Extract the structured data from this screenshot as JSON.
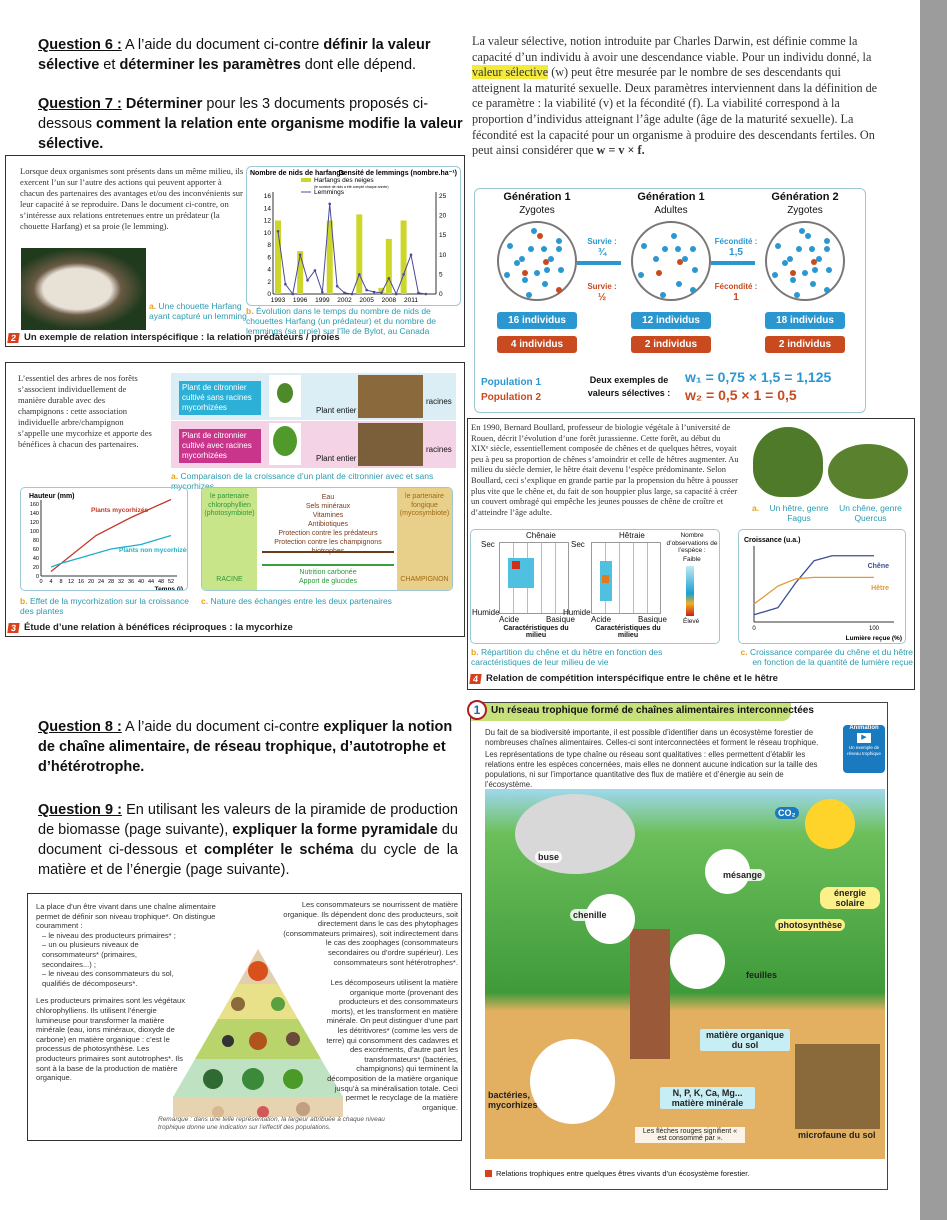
{
  "questions": {
    "q6": {
      "label": "Question 6 :",
      "s1": " A l’aide du document ci-contre ",
      "b1": "définir la valeur sélective",
      "s2": " et ",
      "b2": "déterminer les paramètres",
      "s3": " dont elle dépend."
    },
    "q7": {
      "label": "Question 7 :",
      "s1": " ",
      "b1": "Déterminer",
      "s2": " pour les 3 documents proposés ci-dessous ",
      "b2": "comment la relation ente organisme modifie la valeur sélective."
    },
    "q8": {
      "label": "Question 8 :",
      "s1": " A l’aide du document ci-contre ",
      "b1": "expliquer la notion de chaîne alimentaire, de réseau trophique, d’autotrophe et d’hétérotrophe."
    },
    "q9": {
      "label": "Question 9 :",
      "s1": " En utilisant les valeurs de la piramide de production de biomasse  (page suivante), ",
      "b1": "expliquer la forme pyramidale",
      "s2": " du document ci-dessous et ",
      "b2": "compléter le schéma",
      "s3": " du cycle de la matière et de l’énergie (page suivante)."
    }
  },
  "valeur_selective": {
    "p1": "La valeur sélective, notion introduite par Charles Darwin, est définie comme la capacité d’un individu à avoir une descendance viable. Pour un individu donné, la ",
    "highlight": "valeur sélective",
    "p2": " (w) peut être mesurée par le nombre de ses descendants qui atteignent la maturité sexuelle. Deux paramètres interviennent dans la définition de ce paramètre : la viabilité (v) et la fécondité (f). La viabilité correspond à la proportion d’individus atteignant l’âge adulte (âge de la maturité sexuelle). La fécondité est la capacité pour un organisme à produire des descendants fertiles. On peut ainsi considérer que ",
    "formula": "w = v × f.",
    "generations": [
      {
        "title": "Génération 1",
        "sub": "Zygotes",
        "pop1": "16 individus",
        "pop2": "4 individus"
      },
      {
        "title": "Génération 1",
        "sub": "Adultes",
        "pop1": "12 individus",
        "pop2": "2 individus"
      },
      {
        "title": "Génération 2",
        "sub": "Zygotes",
        "pop1": "18 individus",
        "pop2": "2 individus"
      }
    ],
    "survie1": "Survie :",
    "survie1_val": "¾",
    "survie2": "Survie :",
    "survie2_val": "½",
    "fec1": "Fécondité :",
    "fec1_val": "1,5",
    "fec2": "Fécondité :",
    "fec2_val": "1",
    "population1": "Population 1",
    "population2": "Population 2",
    "examples_label": "Deux exemples de valeurs sélectives :",
    "w1": "w₁ = 0,75 × 1,5 = 1,125",
    "w2": "w₂ = 0,5 × 1 = 0,5",
    "colors": {
      "pop1": "#2b97d0",
      "pop2": "#c94a1f"
    }
  },
  "doc2": {
    "text": "Lorsque deux organismes sont présents dans un même milieu, ils exercent l’un sur l’autre des actions qui peuvent apporter à chacun des partenaires des avantages et/ou des inconvénients sur leur capacité à se reproduire. Dans le document ci-contre, on s’intéresse aux relations entretenues entre un prédateur (la chouette Harfang) et sa proie (le lemming).",
    "caption_a_letter": "a.",
    "caption_a": "Une chouette Harfang ayant capturé un lemming",
    "caption_b_letter": "b.",
    "caption_b": "Évolution dans le temps du nombre de nids de chouettes Harfang (un prédateur) et du nombre de lemmings (sa proie) sur l’île de Bylot, au Canada",
    "number": "2",
    "title": "Un exemple de relation interspécifique : la relation prédateurs / proies"
  },
  "chart_data": [
    {
      "type": "bar+line",
      "ylabel": "Nombre de nids de harfangs",
      "y2label": "Densité de lemmings (nombre.ha⁻¹)",
      "ylim": [
        0,
        16
      ],
      "y2lim": [
        0,
        25
      ],
      "yticks": [
        0,
        2,
        4,
        6,
        8,
        10,
        12,
        14,
        16
      ],
      "y2ticks": [
        0,
        5,
        10,
        15,
        20,
        25
      ],
      "xticks": [
        "1993",
        "1996",
        "1999",
        "2002",
        "2005",
        "2008",
        "2011"
      ],
      "series": [
        {
          "name": "Harfangs des neiges",
          "note": "(le nombre de nids a été compté chaque année)",
          "type": "bar",
          "x": [
            1993,
            1996,
            2000,
            2004,
            2007,
            2008,
            2010
          ],
          "values": [
            12,
            7,
            12,
            13,
            1,
            9,
            12
          ],
          "color": "#cdd62a"
        },
        {
          "name": "Lemmings",
          "type": "line",
          "axis": "y2",
          "x": [
            1993,
            1994,
            1995,
            1996,
            1997,
            1998,
            1999,
            2000,
            2001,
            2002,
            2003,
            2004,
            2005,
            2006,
            2007,
            2008,
            2009,
            2010,
            2011,
            2012,
            2013
          ],
          "values": [
            16,
            2.5,
            0,
            10,
            3.5,
            6,
            0.5,
            23,
            2,
            0.3,
            0,
            5,
            1,
            0.5,
            0.3,
            4,
            0,
            5,
            10,
            0.3,
            0
          ],
          "color": "#4a4a9a"
        }
      ]
    },
    {
      "type": "line",
      "ylabel": "Hauteur (mm)",
      "xlabel": "Temps (j)",
      "xlim": [
        0,
        52
      ],
      "ylim": [
        0,
        160
      ],
      "xticks": [
        0,
        4,
        8,
        12,
        16,
        20,
        24,
        28,
        32,
        36,
        40,
        44,
        48,
        52
      ],
      "yticks": [
        0,
        20,
        40,
        60,
        80,
        100,
        120,
        140,
        160
      ],
      "series": [
        {
          "name": "Plants mycorhizés",
          "x": [
            4,
            22,
            36,
            52
          ],
          "values": [
            10,
            90,
            130,
            170
          ],
          "color": "#c0392b"
        },
        {
          "name": "Plants non mycorhizés",
          "x": [
            4,
            8,
            28,
            40,
            52
          ],
          "values": [
            20,
            28,
            60,
            70,
            90
          ],
          "color": "#1fb0c8"
        }
      ]
    },
    {
      "type": "line",
      "ylabel": "Croissance (u.a.)",
      "xlabel": "Lumière reçue (%)",
      "xticks": [
        "0",
        "100"
      ],
      "series": [
        {
          "name": "Chêne",
          "x": [
            0,
            20,
            35,
            50,
            65,
            100
          ],
          "values": [
            0.1,
            0.2,
            0.55,
            0.85,
            0.92,
            0.92
          ],
          "color": "#3a4f9a"
        },
        {
          "name": "Hêtre",
          "x": [
            0,
            20,
            35,
            50,
            100
          ],
          "values": [
            0.25,
            0.5,
            0.6,
            0.62,
            0.62
          ],
          "color": "#e29a3c"
        }
      ]
    }
  ],
  "doc3": {
    "text": "L’essentiel des arbres de nos forêts s’associent individuellement de manière durable avec des champignons : cette association individuelle arbre/champignon s’appelle une mycorhize et apporte des bénéfices à chacun des partenaires.",
    "plant_without": "Plant de citronnier cultivé sans racines mycorhizées",
    "plant_with": "Plant de citronnier cultivé avec racines mycorhizées",
    "plant_entier": "Plant entier",
    "racines": "racines",
    "caption_a_letter": "a.",
    "caption_a": "Comparaison de la croissance d’un plant de citronnier avec et sans mycorhizes",
    "caption_b_letter": "b.",
    "caption_b": "Effet de la mycorhization sur la croissance des plantes",
    "caption_c_letter": "c.",
    "caption_c": "Nature des échanges entre les deux partenaires",
    "partner_left": "le partenaire chlorophyllien (photosymbiote)",
    "partner_right": "le partenaire fongique (mycosymbiote)",
    "exchanges_top": [
      "Eau",
      "Sels minéraux",
      "Vitamines",
      "Antibiotiques",
      "Protection contre les prédateurs",
      "Protection contre les champignons biotrophes"
    ],
    "exchanges_bottom": [
      "Nutrition carbonée",
      "Apport de glucides"
    ],
    "racine": "RACINE",
    "champignon": "CHAMPIGNON",
    "number": "3",
    "title": "Étude d’une relation à bénéfices réciproques : la mycorhize"
  },
  "doc4": {
    "text": "En 1990, Bernard Boullard, professeur de biologie végétale à l’université de Rouen, décrit l’évolution d’une forêt jurassienne. Cette forêt, au début du XIXᵉ siècle, essentiellement composée de chênes et de quelques hêtres, voyait peu à peu sa proportion de chênes s’amoindrir et celle de hêtres augmenter. Au milieu du siècle dernier, le hêtre était devenu l’espèce prédominante. Selon Boullard, ceci s’explique en grande partie par la propension du hêtre à pousser plus vite que le chêne et, du fait de son houppier plus large, sa capacité à créer un couvert ombragé qui empêche les jeunes pousses de chêne de croître et d’atteindre l’âge adulte.",
    "caption_a_letter": "a.",
    "tree1": "Un hêtre, genre Fagus",
    "tree2": "Un chêne, genre Quercus",
    "chenaie": "Chênaie",
    "hetraie": "Hêtraie",
    "sec": "Sec",
    "humide": "Humide",
    "acide": "Acide",
    "basique": "Basique",
    "axis_y": "Caractéristiques du milieu",
    "axis_x": "Caractéristiques du milieu",
    "legend_title": "Nombre d’observations de l’espèce :",
    "legend_low": "Faible",
    "legend_high": "Élevé",
    "caption_b_letter": "b.",
    "caption_b": "Répartition du chêne et du hêtre en fonction des caractéristiques de leur milieu de vie",
    "caption_c_letter": "c.",
    "caption_c": "Croissance comparée du chêne et du hêtre en fonction de la quantité de lumière reçue",
    "number": "4",
    "title": "Relation de compétition interspécifique entre le chêne et le hêtre"
  },
  "pyramid": {
    "left1": "La place d’un être vivant dans une chaîne alimentaire permet de définir son niveau trophique*. On distingue couramment :",
    "items": [
      "– le niveau des producteurs primaires* ;",
      "– un ou plusieurs niveaux de consommateurs* (primaires, secondaires...) ;",
      "– le niveau des consommateurs du sol, qualifiés de décomposeurs*."
    ],
    "left2": "Les producteurs primaires sont les végétaux chlorophylliens. Ils utilisent l’énergie lumineuse pour transformer la matière minérale (eau, ions minéraux, dioxyde de carbone) en matière organique : c’est le processus de photosynthèse. Les producteurs primaires sont autotrophes*. Ils sont à la base de la production de matière organique.",
    "right1": "Les consommateurs se nourrissent de matière organique. Ils dépendent donc des producteurs, soit directement dans le cas des phytophages (consommateurs primaires), soit indirectement dans le cas des zoophages (consommateurs secondaires ou d’ordre supérieur). Les consommateurs sont hétérotrophes*.",
    "right2": "Les décomposeurs utilisent la matière organique morte (provenant des producteurs et des consommateurs morts), et les transforment en matière minérale. On peut distinguer d’une part les détritivores* (comme les vers de terre) qui consomment des cadavres et des excréments, d’autre part les transformateurs* (bactéries, champignons) qui terminent la décomposition de la matière organique jusqu’à sa minéralisation totale. Ceci permet le recyclage de la matière organique.",
    "remark": "Remarque : dans une telle représentation, la largeur attribuée à chaque niveau trophique donne une indication sur l’effectif des populations."
  },
  "reseau": {
    "number": "1",
    "title": "Un réseau trophique formé de chaînes alimentaires interconnectées",
    "p1": "Du fait de sa biodiversité importante, il est possible d’identifier dans un écosystème forestier de nombreuses chaînes alimentaires. Celles-ci sont interconnectées et forment le réseau trophique.",
    "p2": "Les représentations de type chaîne ou réseau sont qualitatives : elles permettent d’établir les relations entre les espèces concernées, mais elles ne donnent aucune indication sur la taille des populations, ni sur l’importance quantitative des flux de matière et d’énergie au sein de l’écosystème.",
    "animation": "Animation",
    "animation_sub": "Un exemple de réseau trophique",
    "labels": {
      "buse": "buse",
      "mesange": "mésange",
      "co2": "CO₂",
      "energie": "énergie solaire",
      "chenille": "chenille",
      "photosynthese": "photosynthèse",
      "feuilles": "feuilles",
      "mos": "matière organique du sol",
      "bacteries": "bactéries, mycorhizes",
      "mineral": "N, P, K, Ca, Mg... matière minérale",
      "microfaune": "microfaune du sol",
      "legend": "Les flèches rouges signifient « est consommé par »."
    },
    "caption": "Relations trophiques entre quelques êtres vivants d’un écosystème forestier."
  }
}
